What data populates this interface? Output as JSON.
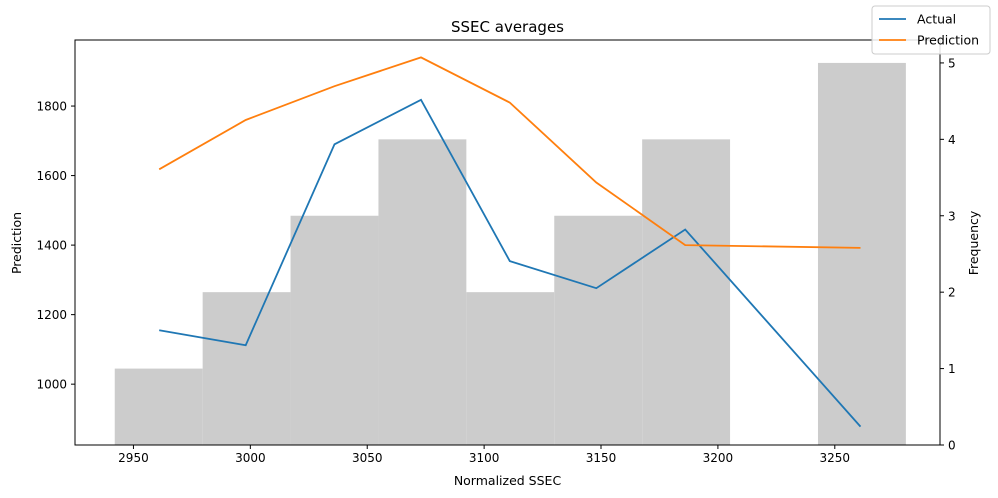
{
  "chart_data": {
    "type": "line",
    "title": "SSEC averages",
    "xlabel": "Normalized SSEC",
    "ylabel_left": "Prediction",
    "ylabel_right": "Frequency",
    "xlim": [
      2925,
      3295
    ],
    "ylim_left": [
      825,
      1990
    ],
    "ylim_right": [
      0,
      5.3
    ],
    "x_ticks": [
      2950,
      3000,
      3050,
      3100,
      3150,
      3200,
      3250
    ],
    "y_ticks_left": [
      1000,
      1200,
      1400,
      1600,
      1800
    ],
    "y_ticks_right": [
      0,
      1,
      2,
      3,
      4,
      5
    ],
    "histogram": {
      "color": "#cccccc",
      "bins": [
        {
          "x0": 2942,
          "x1": 2979.6,
          "count": 1
        },
        {
          "x0": 2979.6,
          "x1": 3017.2,
          "count": 2
        },
        {
          "x0": 3017.2,
          "x1": 3054.8,
          "count": 3
        },
        {
          "x0": 3054.8,
          "x1": 3092.4,
          "count": 4
        },
        {
          "x0": 3092.4,
          "x1": 3130.0,
          "count": 2
        },
        {
          "x0": 3130.0,
          "x1": 3167.6,
          "count": 3
        },
        {
          "x0": 3167.6,
          "x1": 3205.2,
          "count": 4
        },
        {
          "x0": 3205.2,
          "x1": 3242.8,
          "count": 0
        },
        {
          "x0": 3242.8,
          "x1": 3280.4,
          "count": 5
        }
      ]
    },
    "x": [
      2961,
      2998,
      3036,
      3073,
      3111,
      3148,
      3186,
      3261
    ],
    "series": [
      {
        "name": "Actual",
        "color": "#1f77b4",
        "values": [
          1155,
          1112,
          1690,
          1818,
          1354,
          1276,
          1445,
          878
        ]
      },
      {
        "name": "Prediction",
        "color": "#ff7f0e",
        "values": [
          1618,
          1760,
          1857,
          1940,
          1810,
          1580,
          1400,
          1392
        ]
      }
    ],
    "legend_position": "top-right"
  }
}
